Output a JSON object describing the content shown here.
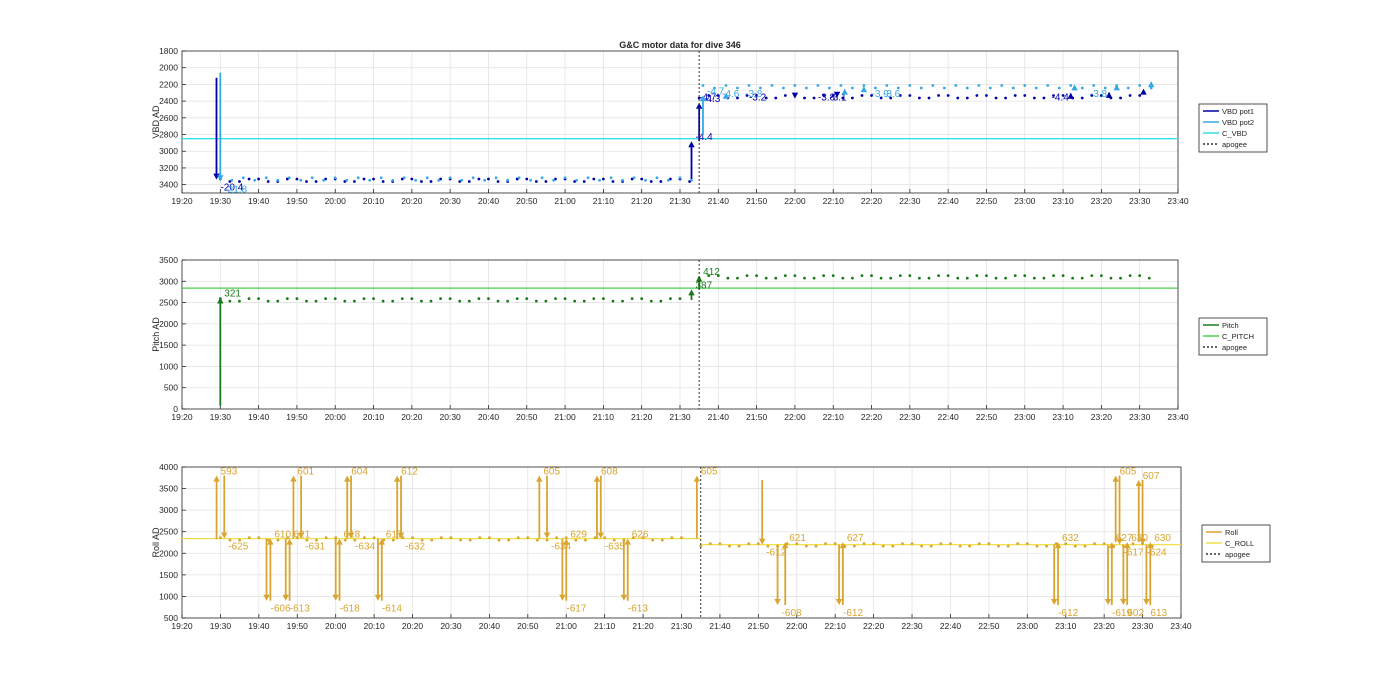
{
  "chart_data": [
    {
      "type": "line",
      "title": "G&C motor data for dive 346",
      "ylabel": "VBD AD",
      "xlim": [
        "19:20",
        "23:40"
      ],
      "ylim": [
        3500,
        1800
      ],
      "y_reversed": true,
      "grid": true,
      "legend_position": "outside-right",
      "xticks": [
        "19:20",
        "19:30",
        "19:40",
        "19:50",
        "20:00",
        "20:10",
        "20:20",
        "20:30",
        "20:40",
        "20:50",
        "21:00",
        "21:10",
        "21:20",
        "21:30",
        "21:40",
        "21:50",
        "22:00",
        "22:10",
        "22:20",
        "22:30",
        "22:40",
        "22:50",
        "23:00",
        "23:10",
        "23:20",
        "23:30",
        "23:40"
      ],
      "yticks": [
        1800,
        2000,
        2200,
        2400,
        2600,
        2800,
        3000,
        3200,
        3400
      ],
      "legend": [
        "VBD pot1",
        "VBD pot2",
        "C_VBD",
        "apogee"
      ],
      "apogee": "21:35",
      "reference_line": {
        "name": "C_VBD",
        "value": 2850
      },
      "series": [
        {
          "name": "VBD pot1",
          "color": "#0000a8",
          "levels": [
            {
              "from": "19:30",
              "to": "21:33",
              "value": 3345
            },
            {
              "from": "21:35",
              "to": "23:31",
              "value": 2345
            }
          ],
          "moves": [
            {
              "t": "19:29",
              "from": 2120,
              "to": 3340,
              "label": "-20.4"
            },
            {
              "t": "21:33",
              "from": 3340,
              "to": 2880,
              "label": "-4.4"
            },
            {
              "t": "21:35",
              "from": 2880,
              "to": 2420,
              "label": "-4.3"
            },
            {
              "t": "22:00",
              "from": 2340,
              "to": 2370
            },
            {
              "t": "22:11",
              "from": 2340,
              "to": 2360
            },
            {
              "t": "23:12",
              "from": 2310,
              "to": 2300
            },
            {
              "t": "23:22",
              "from": 2300,
              "to": 2290
            },
            {
              "t": "23:31",
              "from": 2280,
              "to": 2250
            }
          ],
          "value_labels": [
            {
              "t": "21:35",
              "value": "-4.7"
            },
            {
              "t": "21:48",
              "value": "-3.2"
            },
            {
              "t": "22:06",
              "value": "-3.8"
            },
            {
              "t": "22:09",
              "value": "-3.1"
            },
            {
              "t": "23:07",
              "value": "-4.4"
            }
          ]
        },
        {
          "name": "VBD pot2",
          "color": "#35a9e6",
          "levels": [
            {
              "from": "19:30",
              "to": "21:33",
              "value": 3330
            },
            {
              "from": "21:36",
              "to": "23:33",
              "value": 2225
            }
          ],
          "moves": [
            {
              "t": "19:30",
              "from": 2060,
              "to": 3360,
              "label": "-21.8"
            },
            {
              "t": "21:36",
              "from": 2800,
              "to": 2330,
              "label": "-4.7"
            },
            {
              "t": "21:42",
              "from": 2330,
              "to": 2300
            },
            {
              "t": "22:13",
              "from": 2270,
              "to": 2250
            },
            {
              "t": "22:18",
              "from": 2250,
              "to": 2220
            },
            {
              "t": "23:13",
              "from": 2220,
              "to": 2200
            },
            {
              "t": "23:24",
              "from": 2220,
              "to": 2200
            },
            {
              "t": "23:33",
              "from": 2200,
              "to": 2160
            }
          ],
          "value_labels": [
            {
              "t": "21:41",
              "value": "-4.6"
            },
            {
              "t": "21:47",
              "value": "-3.8"
            },
            {
              "t": "22:20",
              "value": "-3.9"
            },
            {
              "t": "22:23",
              "value": "-3.6"
            },
            {
              "t": "23:17",
              "value": "-3.8"
            }
          ]
        }
      ]
    },
    {
      "type": "line",
      "title": "",
      "ylabel": "Pitch AD",
      "xlim": [
        "19:20",
        "23:40"
      ],
      "ylim": [
        0,
        3500
      ],
      "grid": true,
      "legend_position": "outside-right",
      "xticks": [
        "19:20",
        "19:30",
        "19:40",
        "19:50",
        "20:00",
        "20:10",
        "20:20",
        "20:30",
        "20:40",
        "20:50",
        "21:00",
        "21:10",
        "21:20",
        "21:30",
        "21:40",
        "21:50",
        "22:00",
        "22:10",
        "22:20",
        "22:30",
        "22:40",
        "22:50",
        "23:00",
        "23:10",
        "23:20",
        "23:30",
        "23:40"
      ],
      "yticks": [
        0,
        500,
        1000,
        1500,
        2000,
        2500,
        3000,
        3500
      ],
      "legend": [
        "Pitch",
        "C_PITCH",
        "apogee"
      ],
      "apogee": "21:35",
      "reference_line": {
        "name": "C_PITCH",
        "value": 2840
      },
      "series": [
        {
          "name": "Pitch",
          "color": "#1a7a1a",
          "levels": [
            {
              "from": "19:30",
              "to": "21:32",
              "value": 2570
            },
            {
              "from": "21:35",
              "to": "23:33",
              "value": 3110
            }
          ],
          "moves": [
            {
              "t": "19:30",
              "from": 80,
              "to": 2620,
              "label": "321"
            },
            {
              "t": "21:33",
              "from": 2560,
              "to": 2810,
              "label": "387"
            },
            {
              "t": "21:35",
              "from": 2810,
              "to": 3130,
              "label": "412"
            }
          ]
        }
      ]
    },
    {
      "type": "line",
      "title": "",
      "ylabel": "Roll AD",
      "xlim": [
        "19:20",
        "23:40"
      ],
      "ylim": [
        500,
        4000
      ],
      "grid": true,
      "legend_position": "outside-right",
      "xticks": [
        "19:20",
        "19:30",
        "19:40",
        "19:50",
        "20:00",
        "20:10",
        "20:20",
        "20:30",
        "20:40",
        "20:50",
        "21:00",
        "21:10",
        "21:20",
        "21:30",
        "21:40",
        "21:50",
        "22:00",
        "22:10",
        "22:20",
        "22:30",
        "22:40",
        "22:50",
        "23:00",
        "23:10",
        "23:20",
        "23:30",
        "23:40"
      ],
      "yticks": [
        500,
        1000,
        1500,
        2000,
        2500,
        3000,
        3500,
        4000
      ],
      "legend": [
        "Roll",
        "C_ROLL",
        "apogee"
      ],
      "apogee": "21:35",
      "reference_lines": [
        {
          "name": "C_ROLL",
          "from": "19:20",
          "to": "21:35",
          "value": 2340
        },
        {
          "name": "C_ROLL",
          "from": "21:35",
          "to": "23:40",
          "value": 2200
        }
      ],
      "series": [
        {
          "name": "Roll",
          "color": "#d9a530",
          "levels": [
            {
              "from": "19:30",
              "to": "21:30",
              "value": 2340
            },
            {
              "from": "21:35",
              "to": "23:33",
              "value": 2200
            }
          ],
          "moves": [
            {
              "t": "19:29",
              "from": 2330,
              "to": 3800,
              "label": "593"
            },
            {
              "t": "19:31",
              "from": 3800,
              "to": 2340,
              "label": "-625"
            },
            {
              "t": "19:42",
              "from": 2340,
              "to": 900,
              "label": "-606"
            },
            {
              "t": "19:43",
              "from": 900,
              "to": 2340,
              "label": "610"
            },
            {
              "t": "19:47",
              "from": 2340,
              "to": 900,
              "label": "-613"
            },
            {
              "t": "19:48",
              "from": 900,
              "to": 2340,
              "label": "621"
            },
            {
              "t": "19:49",
              "from": 2340,
              "to": 3800,
              "label": "601"
            },
            {
              "t": "19:51",
              "from": 3800,
              "to": 2340,
              "label": "-631"
            },
            {
              "t": "20:00",
              "from": 2340,
              "to": 900,
              "label": "-618"
            },
            {
              "t": "20:01",
              "from": 900,
              "to": 2340,
              "label": "618"
            },
            {
              "t": "20:03",
              "from": 2340,
              "to": 3800,
              "label": "604"
            },
            {
              "t": "20:04",
              "from": 3800,
              "to": 2340,
              "label": "-634"
            },
            {
              "t": "20:11",
              "from": 2340,
              "to": 900,
              "label": "-614"
            },
            {
              "t": "20:12",
              "from": 900,
              "to": 2340,
              "label": "617"
            },
            {
              "t": "20:16",
              "from": 2340,
              "to": 3800,
              "label": "612"
            },
            {
              "t": "20:17",
              "from": 3800,
              "to": 2340,
              "label": "-632"
            },
            {
              "t": "20:53",
              "from": 2340,
              "to": 3800,
              "label": "605"
            },
            {
              "t": "20:55",
              "from": 3800,
              "to": 2340,
              "label": "-634"
            },
            {
              "t": "20:59",
              "from": 2340,
              "to": 900,
              "label": "-617"
            },
            {
              "t": "21:00",
              "from": 900,
              "to": 2340,
              "label": "629"
            },
            {
              "t": "21:08",
              "from": 2340,
              "to": 3800,
              "label": "608"
            },
            {
              "t": "21:09",
              "from": 3800,
              "to": 2340,
              "label": "-635"
            },
            {
              "t": "21:15",
              "from": 2340,
              "to": 900,
              "label": "-613"
            },
            {
              "t": "21:16",
              "from": 900,
              "to": 2340,
              "label": "626"
            },
            {
              "t": "21:34",
              "from": 2340,
              "to": 3800,
              "label": "605"
            },
            {
              "t": "21:51",
              "from": 3700,
              "to": 2200,
              "label": "-612"
            },
            {
              "t": "21:55",
              "from": 2200,
              "to": 800,
              "label": "-608"
            },
            {
              "t": "21:57",
              "from": 800,
              "to": 2260,
              "label": "621"
            },
            {
              "t": "22:11",
              "from": 2200,
              "to": 800,
              "label": "-612"
            },
            {
              "t": "22:12",
              "from": 800,
              "to": 2260,
              "label": "627"
            },
            {
              "t": "23:07",
              "from": 2200,
              "to": 800,
              "label": "-612"
            },
            {
              "t": "23:08",
              "from": 800,
              "to": 2260,
              "label": "632"
            },
            {
              "t": "23:21",
              "from": 2200,
              "to": 800,
              "label": "-619"
            },
            {
              "t": "23:22",
              "from": 800,
              "to": 2260,
              "label": "627"
            },
            {
              "t": "23:23",
              "from": 2260,
              "to": 3800,
              "label": "605"
            },
            {
              "t": "23:24",
              "from": 3800,
              "to": 2200,
              "label": "-617"
            },
            {
              "t": "23:25",
              "from": 2200,
              "to": 800,
              "label": "602"
            },
            {
              "t": "23:26",
              "from": 800,
              "to": 2260,
              "label": "630"
            },
            {
              "t": "23:29",
              "from": 2260,
              "to": 3700,
              "label": "607"
            },
            {
              "t": "23:30",
              "from": 3700,
              "to": 2200,
              "label": "-624"
            },
            {
              "t": "23:31",
              "from": 2200,
              "to": 800,
              "label": "613"
            },
            {
              "t": "23:32",
              "from": 800,
              "to": 2260,
              "label": "630"
            }
          ]
        }
      ]
    }
  ]
}
